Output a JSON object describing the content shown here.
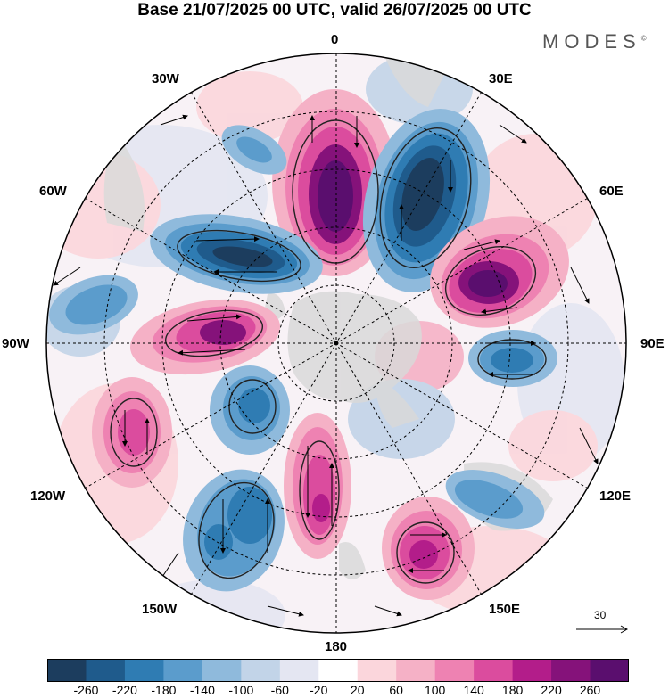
{
  "title": "Base 21/07/2025 00 UTC, valid 26/07/2025 00 UTC",
  "brand": "MODES",
  "brand_mark": "©",
  "longitude_labels": {
    "n0": "0",
    "n30e": "30E",
    "n60e": "60E",
    "n90e": "90E",
    "n120e": "120E",
    "n150e": "150E",
    "n180": "180",
    "n150w": "150W",
    "n120w": "120W",
    "n90w": "90W",
    "n60w": "60W",
    "n30w": "30W"
  },
  "reference_vector": {
    "label": "30"
  },
  "colorbar": {
    "ticks": [
      "-260",
      "-220",
      "-180",
      "-140",
      "-100",
      "-60",
      "-20",
      "20",
      "60",
      "100",
      "140",
      "180",
      "220",
      "260"
    ],
    "colors": [
      "#1c3d5e",
      "#1f5b8c",
      "#2f7cb3",
      "#5b9ccc",
      "#8fbadc",
      "#c2d4e8",
      "#e4e6f2",
      "#ffffff",
      "#fbd6dc",
      "#f5b1c6",
      "#ee82b2",
      "#db4c9e",
      "#b31d8a",
      "#85127a",
      "#5a0e6e"
    ]
  },
  "anomaly_centers": [
    {
      "type": "positive",
      "value": 260,
      "lon": 0,
      "name": "high-0"
    },
    {
      "type": "negative",
      "value": -260,
      "lon": 30,
      "name": "low-30e"
    },
    {
      "type": "positive",
      "value": 260,
      "lon": 60,
      "name": "high-60e"
    },
    {
      "type": "negative",
      "value": -180,
      "lon": 95,
      "name": "low-95e"
    },
    {
      "type": "positive",
      "value": 220,
      "lon": 150,
      "name": "high-150e"
    },
    {
      "type": "negative",
      "value": -140,
      "lon": 125,
      "name": "low-125e"
    },
    {
      "type": "positive",
      "value": 180,
      "lon": 180,
      "name": "high-180"
    },
    {
      "type": "negative",
      "value": -180,
      "lon": -150,
      "name": "low-150w"
    },
    {
      "type": "positive",
      "value": 180,
      "lon": -120,
      "name": "high-120w"
    },
    {
      "type": "negative",
      "value": -100,
      "lon": -150,
      "name": "low-140w"
    },
    {
      "type": "positive",
      "value": 220,
      "lon": -85,
      "name": "high-85w"
    },
    {
      "type": "negative",
      "value": -220,
      "lon": -50,
      "name": "low-50w"
    },
    {
      "type": "negative",
      "value": -140,
      "lon": -90,
      "name": "low-95w"
    }
  ]
}
